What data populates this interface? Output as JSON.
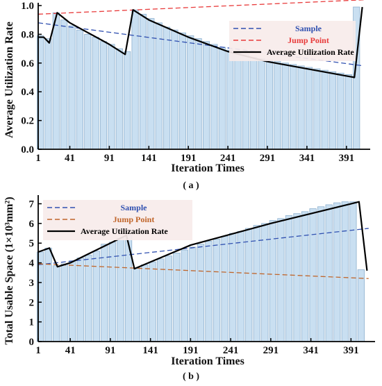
{
  "figure": {
    "caption_a": "( a )",
    "caption_b": "( b )"
  },
  "chart_data": [
    {
      "type": "bar",
      "panel": "a",
      "xlabel": "Iteration Times",
      "ylabel": "Average Utilization Rate",
      "ylim": [
        0,
        1.0
      ],
      "xlim": [
        1,
        421
      ],
      "xticks": [
        1,
        41,
        91,
        141,
        191,
        241,
        291,
        341,
        391
      ],
      "yticks": [
        0.0,
        0.2,
        0.4,
        0.6,
        0.8,
        1.0
      ],
      "ytick_labels": [
        "0.0",
        "0.2",
        "0.4",
        "0.6",
        "0.8",
        "1.0"
      ],
      "bar_start": 1,
      "bar_step": 10,
      "bar_color": "#c9dff1",
      "bar_edge": "#8fb1cf",
      "bars": [
        0.79,
        0.77,
        0.95,
        0.9,
        0.86,
        0.83,
        0.8,
        0.78,
        0.75,
        0.73,
        0.7,
        0.68,
        0.97,
        0.94,
        0.91,
        0.88,
        0.85,
        0.83,
        0.81,
        0.79,
        0.77,
        0.75,
        0.73,
        0.71,
        0.69,
        0.67,
        0.66,
        0.64,
        0.63,
        0.62,
        0.61,
        0.6,
        0.59,
        0.58,
        0.57,
        0.56,
        0.55,
        0.54,
        0.53,
        0.52,
        0.99
      ],
      "grid": false,
      "legend_position": "top-right",
      "series": [
        {
          "name": "Sample",
          "kind": "dashed",
          "color": "#3050b0",
          "x": [
            1,
            413
          ],
          "y": [
            0.88,
            0.58
          ]
        },
        {
          "name": "Jump Point",
          "kind": "dashed",
          "color": "#e83a3a",
          "x": [
            1,
            413
          ],
          "y": [
            0.94,
            1.04
          ]
        },
        {
          "name": "Average Utilization Rate",
          "kind": "solid",
          "color": "#000000",
          "x": [
            1,
            8,
            15,
            25,
            41,
            91,
            111,
            121,
            141,
            191,
            241,
            291,
            341,
            391,
            401,
            411
          ],
          "y": [
            0.78,
            0.78,
            0.74,
            0.95,
            0.88,
            0.73,
            0.66,
            0.97,
            0.9,
            0.78,
            0.68,
            0.61,
            0.56,
            0.51,
            0.5,
            0.99
          ]
        }
      ]
    },
    {
      "type": "bar",
      "panel": "b",
      "xlabel": "Iteration Times",
      "ylabel": "Total Usable Space (1×10³mm²)",
      "ylim": [
        0,
        7.3
      ],
      "xlim": [
        1,
        421
      ],
      "xticks": [
        1,
        41,
        91,
        141,
        191,
        241,
        291,
        341,
        391
      ],
      "yticks": [
        0,
        1,
        2,
        3,
        4,
        5,
        6,
        7
      ],
      "ytick_labels": [
        "0",
        "1",
        "2",
        "3",
        "4",
        "5",
        "6",
        "7"
      ],
      "bar_start": 1,
      "bar_step": 10,
      "bar_color": "#c9dff1",
      "bar_edge": "#8fb1cf",
      "bars": [
        4.55,
        4.75,
        3.85,
        3.95,
        4.1,
        4.25,
        4.4,
        4.6,
        4.95,
        5.05,
        5.25,
        5.4,
        3.75,
        3.9,
        4.05,
        4.2,
        4.35,
        4.5,
        4.65,
        4.8,
        4.95,
        5.1,
        5.2,
        5.35,
        5.5,
        5.6,
        5.75,
        5.9,
        6.0,
        6.15,
        6.25,
        6.4,
        6.5,
        6.6,
        6.75,
        6.85,
        6.95,
        7.05,
        7.1,
        7.1,
        3.65
      ],
      "grid": false,
      "legend_position": "top-left",
      "series": [
        {
          "name": "Sample",
          "kind": "dashed",
          "color": "#3050b0",
          "x": [
            1,
            413
          ],
          "y": [
            3.9,
            5.75
          ]
        },
        {
          "name": "Jump Point",
          "kind": "dashed",
          "color": "#c0652a",
          "x": [
            1,
            413
          ],
          "y": [
            3.95,
            3.2
          ]
        },
        {
          "name": "Average Utilization Rate",
          "kind": "solid",
          "color": "#000000",
          "x": [
            1,
            8,
            15,
            25,
            41,
            91,
            111,
            121,
            191,
            291,
            391,
            401,
            411
          ],
          "y": [
            4.55,
            4.65,
            4.75,
            3.8,
            4.0,
            5.0,
            5.4,
            3.7,
            4.9,
            6.0,
            7.0,
            7.1,
            3.6
          ]
        }
      ]
    }
  ]
}
